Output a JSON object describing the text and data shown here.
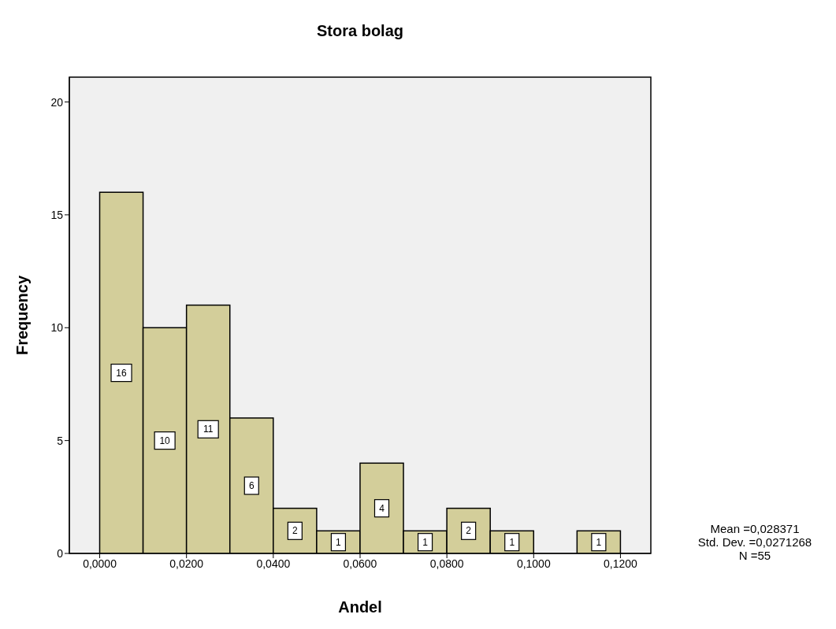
{
  "chart_data": {
    "type": "histogram",
    "title": "Stora bolag",
    "xlabel": "Andel",
    "ylabel": "Frequency",
    "bins": [
      0,
      0.01,
      0.02,
      0.03,
      0.04,
      0.05,
      0.06,
      0.07,
      0.08,
      0.09,
      0.1,
      0.11,
      0.12
    ],
    "values": [
      16,
      10,
      11,
      6,
      2,
      1,
      4,
      1,
      2,
      1,
      0,
      1
    ],
    "value_labels": [
      "16",
      "10",
      "11",
      "6",
      "2",
      "1",
      "4",
      "1",
      "2",
      "1",
      null,
      "1"
    ],
    "color": "#d3ce9a",
    "xlim": [
      -0.007,
      0.127
    ],
    "xticks": [
      {
        "value": 0,
        "label": "0,0000"
      },
      {
        "value": 0.02,
        "label": "0,0200"
      },
      {
        "value": 0.04,
        "label": "0,0400"
      },
      {
        "value": 0.06,
        "label": "0,0600"
      },
      {
        "value": 0.08,
        "label": "0,0800"
      },
      {
        "value": 0.1,
        "label": "0,1000"
      },
      {
        "value": 0.12,
        "label": "0,1200"
      }
    ],
    "ylim": [
      0,
      21.1
    ],
    "yticks": [
      0,
      5,
      10,
      15,
      20
    ],
    "grid": false,
    "legend": false,
    "annotations": [
      "Mean =0,028371",
      "Std. Dev. =0,0271268",
      "N =55"
    ]
  }
}
